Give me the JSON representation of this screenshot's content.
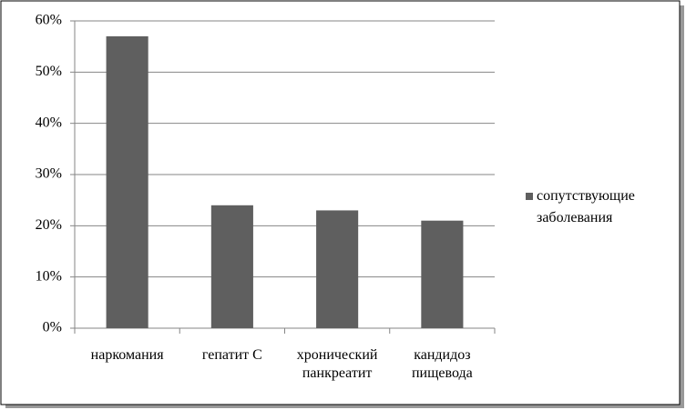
{
  "chart_data": {
    "type": "bar",
    "categories": [
      "наркомания",
      "гепатит С",
      "хронический панкреатит",
      "кандидоз пищевода"
    ],
    "series": [
      {
        "name": "сопутствующие заболевания",
        "color": "#5f5f5f",
        "values": [
          57,
          24,
          23,
          21
        ]
      }
    ],
    "ylim": [
      0,
      60
    ],
    "yticks": [
      {
        "value": 0,
        "label": "0%"
      },
      {
        "value": 10,
        "label": "10%"
      },
      {
        "value": 20,
        "label": "20%"
      },
      {
        "value": 30,
        "label": "30%"
      },
      {
        "value": 40,
        "label": "40%"
      },
      {
        "value": 50,
        "label": "50%"
      },
      {
        "value": 60,
        "label": "60%"
      }
    ],
    "grid": true,
    "legend": "right"
  }
}
